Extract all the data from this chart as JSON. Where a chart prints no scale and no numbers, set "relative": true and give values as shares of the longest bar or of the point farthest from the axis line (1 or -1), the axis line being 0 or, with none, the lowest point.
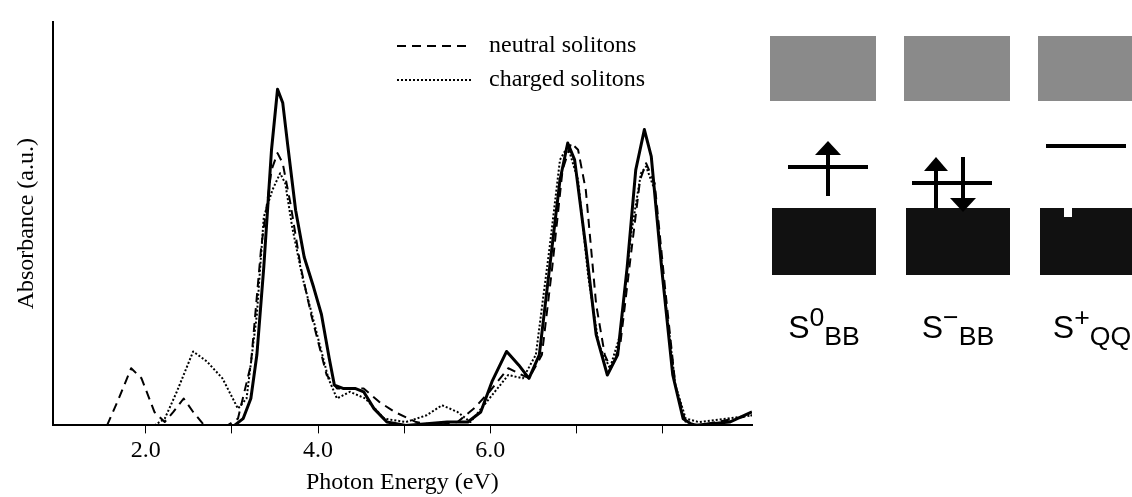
{
  "chart_data": {
    "type": "line",
    "relative": true,
    "xlabel": "Photon Energy (eV)",
    "ylabel": "Absorbance (a.u.)",
    "xlim": [
      0.92,
      9.04
    ],
    "xticks": [
      {
        "value": 2,
        "label": "2.0"
      },
      {
        "value": 3,
        "label": null
      },
      {
        "value": 4,
        "label": "4.0"
      },
      {
        "value": 5,
        "label": null
      },
      {
        "value": 6,
        "label": "6.0"
      },
      {
        "value": 7,
        "label": null
      },
      {
        "value": 8,
        "label": null
      }
    ],
    "legend": "top right",
    "marker": "none",
    "grid": false,
    "annotations": [
      "S$^{0}$$_{BB}$",
      "S$^{−}$$_{BB}$",
      "S$^{+}$$_{QQ}$"
    ],
    "series": [
      {
        "color": "#000000",
        "line_style": "solid",
        "x": [
          3.03,
          3.13,
          3.22,
          3.29,
          3.37,
          3.46,
          3.53,
          3.59,
          3.65,
          3.74,
          3.84,
          3.95,
          4.04,
          4.13,
          4.19,
          4.29,
          4.43,
          4.53,
          4.65,
          4.8,
          5.02,
          5.5,
          5.74,
          5.89,
          6.02,
          6.19,
          6.33,
          6.45,
          6.57,
          6.69,
          6.81,
          6.9,
          6.98,
          7.11,
          7.23,
          7.36,
          7.48,
          7.59,
          7.69,
          7.79,
          7.87,
          7.99,
          8.12,
          8.24,
          8.36,
          8.78,
          9.04
        ],
        "values": [
          0,
          0.02,
          0.08,
          0.21,
          0.47,
          0.82,
          1.0,
          0.96,
          0.83,
          0.64,
          0.5,
          0.41,
          0.33,
          0.2,
          0.12,
          0.11,
          0.11,
          0.1,
          0.05,
          0.01,
          0,
          0.01,
          0.01,
          0.04,
          0.13,
          0.22,
          0.18,
          0.14,
          0.21,
          0.47,
          0.73,
          0.84,
          0.79,
          0.53,
          0.27,
          0.15,
          0.21,
          0.47,
          0.76,
          0.88,
          0.8,
          0.47,
          0.15,
          0.02,
          0,
          0.01,
          0.04
        ]
      },
      {
        "name": "neutral solitons",
        "color": "#000000",
        "line_style": "dashed",
        "x": [
          1.55,
          1.67,
          1.83,
          1.95,
          2.1,
          2.22,
          2.32,
          2.44,
          2.55,
          2.68,
          2.95,
          3.07,
          3.22,
          3.34,
          3.46,
          3.53,
          3.59,
          3.68,
          3.8,
          3.92,
          4.1,
          4.22,
          4.35,
          4.53,
          4.71,
          4.89,
          5.14,
          5.38,
          5.62,
          5.81,
          5.99,
          6.21,
          6.45,
          6.6,
          6.72,
          6.84,
          6.94,
          7.02,
          7.11,
          7.23,
          7.33,
          7.4,
          7.51,
          7.63,
          7.74,
          7.81,
          7.91,
          8.03,
          8.15,
          8.27,
          8.42,
          9.04
        ],
        "values": [
          0,
          0.07,
          0.17,
          0.14,
          0.04,
          0.01,
          0.04,
          0.08,
          0.04,
          0,
          0,
          0.02,
          0.18,
          0.53,
          0.76,
          0.81,
          0.78,
          0.66,
          0.47,
          0.33,
          0.15,
          0.11,
          0.11,
          0.11,
          0.07,
          0.04,
          0.01,
          0,
          0.01,
          0.05,
          0.1,
          0.17,
          0.14,
          0.21,
          0.47,
          0.76,
          0.84,
          0.82,
          0.7,
          0.36,
          0.21,
          0.17,
          0.24,
          0.5,
          0.73,
          0.78,
          0.72,
          0.41,
          0.12,
          0.01,
          0,
          0.03
        ]
      },
      {
        "name": "charged solitons",
        "color": "#000000",
        "line_style": "dotted",
        "x": [
          2.1,
          2.22,
          2.36,
          2.55,
          2.71,
          2.89,
          3.07,
          3.17,
          3.29,
          3.37,
          3.47,
          3.56,
          3.62,
          3.7,
          3.82,
          3.95,
          4.12,
          4.22,
          4.37,
          4.55,
          4.77,
          5.02,
          5.26,
          5.44,
          5.62,
          5.77,
          5.99,
          6.21,
          6.38,
          6.53,
          6.69,
          6.81,
          6.9,
          7.02,
          7.14,
          7.26,
          7.39,
          7.51,
          7.63,
          7.75,
          7.81,
          7.91,
          8.03,
          8.15,
          8.27,
          8.42,
          9.04
        ],
        "values": [
          0,
          0.02,
          0.1,
          0.22,
          0.19,
          0.14,
          0.05,
          0.08,
          0.33,
          0.62,
          0.7,
          0.75,
          0.72,
          0.59,
          0.44,
          0.31,
          0.14,
          0.08,
          0.1,
          0.08,
          0.02,
          0.01,
          0.03,
          0.06,
          0.04,
          0.01,
          0.08,
          0.15,
          0.14,
          0.21,
          0.53,
          0.79,
          0.83,
          0.73,
          0.44,
          0.24,
          0.17,
          0.27,
          0.56,
          0.75,
          0.77,
          0.7,
          0.38,
          0.12,
          0.02,
          0.01,
          0.03
        ]
      }
    ]
  }
}
